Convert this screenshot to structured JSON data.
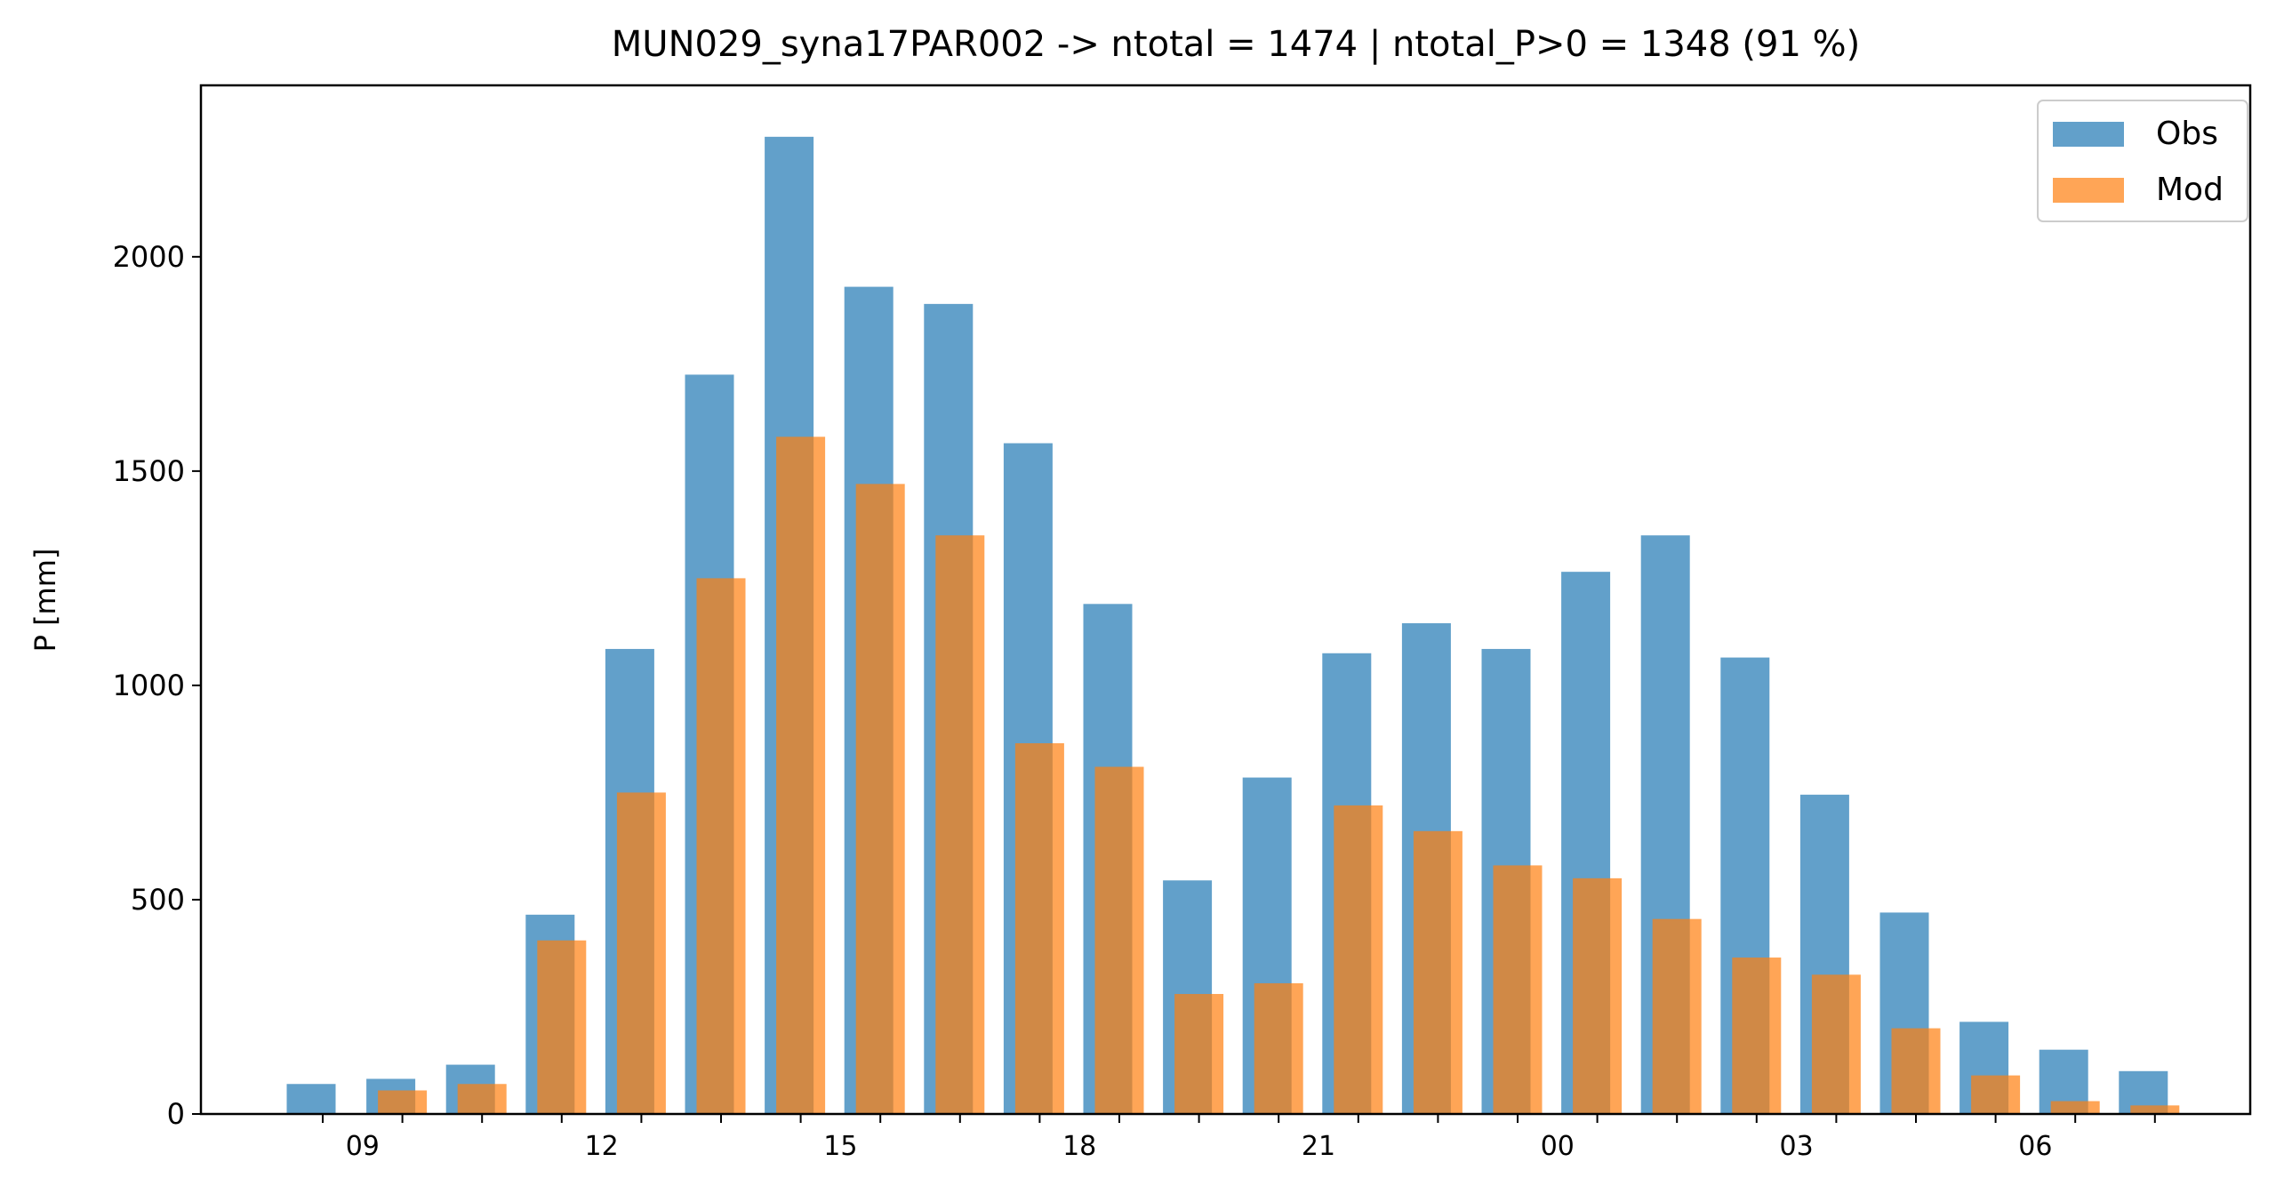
{
  "chart_data": {
    "type": "bar",
    "title": "MUN029_syna17PAR002 -> ntotal = 1474 | ntotal_P>0 = 1348 (91 %)",
    "xlabel": "",
    "ylabel": "P [mm]",
    "ylim": [
      0,
      2400
    ],
    "yticks": [
      0,
      500,
      1000,
      1500,
      2000
    ],
    "categories": [
      "08",
      "09",
      "10",
      "11",
      "12",
      "13",
      "14",
      "15",
      "16",
      "17",
      "18",
      "19",
      "20",
      "21",
      "22",
      "23",
      "00",
      "01",
      "02",
      "03",
      "04",
      "05",
      "06",
      "07"
    ],
    "xtick_labels": [
      {
        "category": "09",
        "label": "09"
      },
      {
        "category": "12",
        "label": "12"
      },
      {
        "category": "15",
        "label": "15"
      },
      {
        "category": "18",
        "label": "18"
      },
      {
        "category": "21",
        "label": "21"
      },
      {
        "category": "00",
        "label": "00"
      },
      {
        "category": "03",
        "label": "03"
      },
      {
        "category": "06",
        "label": "06"
      }
    ],
    "series": [
      {
        "name": "Obs",
        "color": "#1f77b4",
        "values": [
          70,
          82,
          115,
          465,
          1085,
          1725,
          2280,
          1930,
          1890,
          1565,
          1190,
          545,
          785,
          1075,
          1145,
          1085,
          1265,
          1350,
          1065,
          745,
          470,
          215,
          150,
          100
        ]
      },
      {
        "name": "Mod",
        "color": "#ff7f0e",
        "values": [
          0,
          55,
          70,
          405,
          750,
          1250,
          1580,
          1470,
          1350,
          865,
          810,
          280,
          305,
          720,
          660,
          580,
          550,
          455,
          365,
          325,
          200,
          90,
          30,
          20
        ]
      }
    ],
    "grid": false,
    "legend_position": "top-right"
  }
}
